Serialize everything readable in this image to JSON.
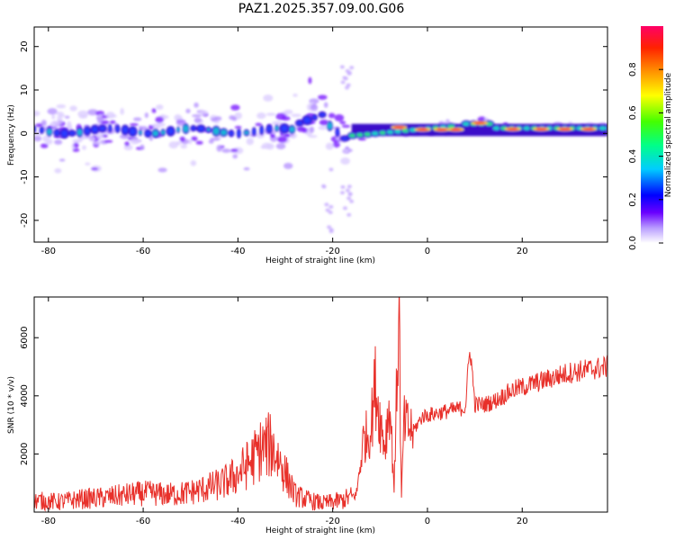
{
  "title": "PAZ1.2025.357.09.00.G06",
  "chart_data": [
    {
      "type": "heatmap",
      "xlabel": "Height of straight line (km)",
      "ylabel": "Frequency (Hz)",
      "xlim": [
        -83,
        38
      ],
      "ylim": [
        -25,
        24.5
      ],
      "xticks": [
        "-80",
        "-60",
        "-40",
        "-20",
        "0",
        "20"
      ],
      "yticks": [
        "-20",
        "-10",
        "0",
        "10",
        "20"
      ],
      "colorbar": {
        "label": "Normalized spectral amplitude",
        "range": [
          0,
          1
        ],
        "ticks": [
          "0.0",
          "0.2",
          "0.4",
          "0.6",
          "0.8"
        ]
      }
    },
    {
      "type": "line",
      "xlabel": "Height of straight line (km)",
      "ylabel": "SNR (10 * v/v)",
      "xlim": [
        -83,
        38
      ],
      "ylim": [
        0,
        7400
      ],
      "xticks": [
        "-80",
        "-60",
        "-40",
        "-20",
        "0",
        "20"
      ],
      "yticks": [
        "2000",
        "4000",
        "6000"
      ],
      "series": [
        {
          "name": "SNR",
          "color": "#e8302a",
          "x": [
            -83,
            -78,
            -73,
            -68,
            -63,
            -59,
            -55,
            -51,
            -47,
            -43,
            -40,
            -37,
            -35,
            -33,
            -31,
            -28,
            -25,
            -22,
            -18,
            -15,
            -13.5,
            -12,
            -11,
            -10,
            -9,
            -8,
            -7,
            -6,
            -5.5,
            -5,
            -3,
            -1,
            2,
            5,
            8,
            9,
            10,
            12,
            14,
            16,
            18,
            22,
            26,
            30,
            34,
            38
          ],
          "values": [
            400,
            350,
            450,
            500,
            600,
            650,
            600,
            650,
            800,
            1000,
            1300,
            1800,
            2200,
            2300,
            1700,
            600,
            400,
            300,
            400,
            600,
            2500,
            2800,
            4400,
            3200,
            2300,
            3800,
            800,
            7400,
            300,
            3000,
            2800,
            3300,
            3400,
            3500,
            3600,
            5700,
            3700,
            3700,
            3800,
            4000,
            4200,
            4400,
            4600,
            4800,
            4900,
            5000
          ]
        }
      ]
    }
  ]
}
